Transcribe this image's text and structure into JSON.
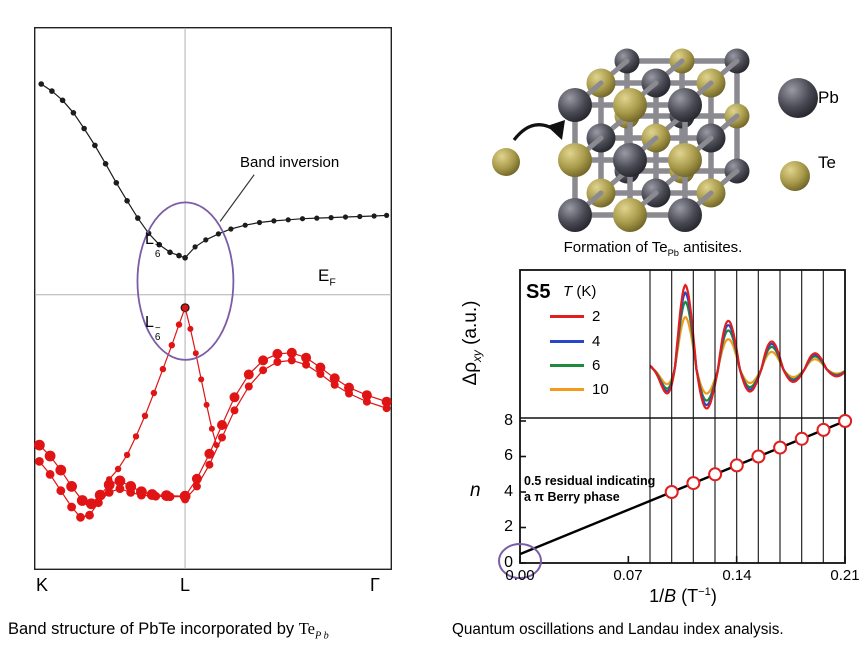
{
  "band_panel": {
    "annotation_label": "Band inversion",
    "ef": {
      "base": "E",
      "sub": "F"
    },
    "l6_plus": {
      "base": "L",
      "sub": "6",
      "sup": "+"
    },
    "l6_minus": {
      "base": "L",
      "sub": "6",
      "sup": "−"
    },
    "x_ticks": [
      "K",
      "L",
      "Γ"
    ]
  },
  "crystal_panel": {
    "caption": {
      "pre": "Formation of Te",
      "sub": "Pb",
      "post": " antisites."
    },
    "legend": [
      {
        "label": "Pb"
      },
      {
        "label": "Te"
      }
    ],
    "colors": {
      "Pb": "#4a4a54",
      "Te": "#a89a4a"
    }
  },
  "oscillation_panel": {
    "sample": "S5",
    "legend_title_italic": "T",
    "legend_title_rest": " (K)",
    "legend_entries": [
      {
        "label": "2",
        "color": "#e01f1f"
      },
      {
        "label": "4",
        "color": "#2a46c8"
      },
      {
        "label": "6",
        "color": "#1f8a3a"
      },
      {
        "label": "10",
        "color": "#f59a1a"
      }
    ],
    "ylabel_top_parts": {
      "delta_rho": "Δρ",
      "sub": "xy",
      "rest": " (a.u.)"
    },
    "ylabel_bottom": "n",
    "y_ticks": [
      "0",
      "2",
      "4",
      "6",
      "8"
    ],
    "x_ticks": [
      "0.00",
      "0.07",
      "0.14",
      "0.21"
    ],
    "xlabel_parts": {
      "pre": "1/",
      "italic": "B",
      "post": " (T",
      "sup": "−1",
      "end": ")"
    },
    "annotation_line1": "0.5 residual indicating",
    "annotation_line2": "a π Berry phase"
  },
  "captions": {
    "left_main": "Band structure of PbTe incorporated by ",
    "left_te": "Te",
    "left_te_sub": "P b",
    "right": "Quantum oscillations and Landau index analysis."
  },
  "chart_data": [
    {
      "type": "scatter",
      "title": "Band structure of PbTe incorporated by TePb",
      "x_ticks": [
        "K",
        "L",
        "Γ"
      ],
      "l_frac": 0.422,
      "ef_frac": 0.493,
      "coordinates_note": "points are [x,y] panel fractions; x: 0=K, 0.422=L, 1=Γ; y: 0=top, 1=bottom; Fermi level at y=0.493",
      "series": [
        {
          "name": "conduction-band-left",
          "color": "#1c1c1c",
          "r": 2.8,
          "points": [
            [
              0.02,
              0.105
            ],
            [
              0.05,
              0.118
            ],
            [
              0.08,
              0.135
            ],
            [
              0.11,
              0.158
            ],
            [
              0.14,
              0.187
            ],
            [
              0.17,
              0.218
            ],
            [
              0.2,
              0.252
            ],
            [
              0.23,
              0.287
            ],
            [
              0.26,
              0.32
            ],
            [
              0.29,
              0.352
            ],
            [
              0.32,
              0.38
            ],
            [
              0.35,
              0.401
            ],
            [
              0.38,
              0.415
            ],
            [
              0.405,
              0.421
            ],
            [
              0.422,
              0.425
            ]
          ]
        },
        {
          "name": "conduction-band-right",
          "color": "#1c1c1c",
          "r": 2.6,
          "points": [
            [
              0.422,
              0.425
            ],
            [
              0.45,
              0.405
            ],
            [
              0.48,
              0.392
            ],
            [
              0.515,
              0.381
            ],
            [
              0.55,
              0.372
            ],
            [
              0.59,
              0.365
            ],
            [
              0.63,
              0.36
            ],
            [
              0.67,
              0.357
            ],
            [
              0.71,
              0.355
            ],
            [
              0.75,
              0.353
            ],
            [
              0.79,
              0.352
            ],
            [
              0.83,
              0.351
            ],
            [
              0.87,
              0.35
            ],
            [
              0.91,
              0.349
            ],
            [
              0.95,
              0.348
            ],
            [
              0.985,
              0.347
            ]
          ]
        },
        {
          "name": "l6-minus-point",
          "color": "#1c1c1c",
          "r": 4.5,
          "points": [
            [
              0.422,
              0.517
            ]
          ]
        },
        {
          "name": "valence-from-l6-left",
          "color": "#e01414",
          "r": 3.2,
          "points": [
            [
              0.422,
              0.517
            ],
            [
              0.405,
              0.548
            ],
            [
              0.385,
              0.586
            ],
            [
              0.36,
              0.63
            ],
            [
              0.335,
              0.674
            ],
            [
              0.31,
              0.716
            ],
            [
              0.285,
              0.754
            ],
            [
              0.26,
              0.788
            ],
            [
              0.235,
              0.814
            ],
            [
              0.21,
              0.833
            ]
          ]
        },
        {
          "name": "valence-from-l6-right",
          "color": "#e01414",
          "r": 3.0,
          "points": [
            [
              0.422,
              0.517
            ],
            [
              0.437,
              0.556
            ],
            [
              0.452,
              0.601
            ],
            [
              0.467,
              0.649
            ],
            [
              0.482,
              0.696
            ],
            [
              0.497,
              0.74
            ],
            [
              0.51,
              0.77
            ]
          ]
        },
        {
          "name": "valence-left-upper",
          "color": "#e01414",
          "r": 5.4,
          "points": [
            [
              0.015,
              0.77
            ],
            [
              0.045,
              0.79
            ],
            [
              0.075,
              0.816
            ],
            [
              0.105,
              0.846
            ],
            [
              0.135,
              0.872
            ],
            [
              0.16,
              0.878
            ],
            [
              0.185,
              0.862
            ],
            [
              0.21,
              0.843
            ],
            [
              0.24,
              0.836
            ],
            [
              0.27,
              0.846
            ],
            [
              0.3,
              0.856
            ],
            [
              0.33,
              0.861
            ],
            [
              0.37,
              0.863
            ],
            [
              0.422,
              0.864
            ]
          ]
        },
        {
          "name": "valence-left-lower",
          "color": "#e01414",
          "r": 4.4,
          "points": [
            [
              0.015,
              0.8
            ],
            [
              0.045,
              0.824
            ],
            [
              0.075,
              0.854
            ],
            [
              0.105,
              0.884
            ],
            [
              0.13,
              0.903
            ],
            [
              0.155,
              0.899
            ],
            [
              0.18,
              0.876
            ],
            [
              0.21,
              0.857
            ],
            [
              0.24,
              0.85
            ],
            [
              0.27,
              0.857
            ],
            [
              0.3,
              0.862
            ],
            [
              0.34,
              0.864
            ],
            [
              0.38,
              0.865
            ],
            [
              0.422,
              0.865
            ]
          ]
        },
        {
          "name": "valence-right-upper",
          "color": "#e01414",
          "r": 5.0,
          "points": [
            [
              0.422,
              0.864
            ],
            [
              0.455,
              0.832
            ],
            [
              0.49,
              0.786
            ],
            [
              0.525,
              0.733
            ],
            [
              0.56,
              0.682
            ],
            [
              0.6,
              0.64
            ],
            [
              0.64,
              0.614
            ],
            [
              0.68,
              0.602
            ],
            [
              0.72,
              0.6
            ],
            [
              0.76,
              0.609
            ],
            [
              0.8,
              0.627
            ],
            [
              0.84,
              0.647
            ],
            [
              0.88,
              0.664
            ],
            [
              0.93,
              0.678
            ],
            [
              0.985,
              0.69
            ]
          ]
        },
        {
          "name": "valence-right-lower",
          "color": "#e01414",
          "r": 4.0,
          "points": [
            [
              0.422,
              0.87
            ],
            [
              0.455,
              0.846
            ],
            [
              0.49,
              0.806
            ],
            [
              0.525,
              0.756
            ],
            [
              0.56,
              0.706
            ],
            [
              0.6,
              0.662
            ],
            [
              0.64,
              0.632
            ],
            [
              0.68,
              0.617
            ],
            [
              0.72,
              0.614
            ],
            [
              0.76,
              0.622
            ],
            [
              0.8,
              0.639
            ],
            [
              0.84,
              0.659
            ],
            [
              0.88,
              0.675
            ],
            [
              0.93,
              0.69
            ],
            [
              0.985,
              0.702
            ]
          ]
        }
      ],
      "annotations": {
        "label": "Band inversion",
        "ellipse": {
          "cx": 0.423,
          "cy": 0.468,
          "rx": 0.134,
          "ry": 0.145
        },
        "pointer": [
          0.615,
          0.272,
          0.52,
          0.358
        ],
        "color": "#7b5ca6"
      }
    },
    {
      "type": "line",
      "title": "Quantum oscillations and Landau index analysis",
      "x": {
        "label": "1/B (T⁻¹)",
        "range": [
          0,
          0.21
        ],
        "ticks": [
          0,
          0.07,
          0.14,
          0.21
        ]
      },
      "gridlines_invB": [
        0.084,
        0.098,
        0.112,
        0.126,
        0.14,
        0.154,
        0.168,
        0.182,
        0.196,
        0.21
      ],
      "oscillation": {
        "ylabel": "Δρxy (a.u.)",
        "frequency_T": 35.7,
        "peak_invB": 0.107,
        "x_start": 0.084,
        "x_end": 0.2102,
        "series": [
          {
            "name": "2",
            "color": "#e01f1f",
            "amplitude": 1
          },
          {
            "name": "4",
            "color": "#2a46c8",
            "amplitude": 0.91
          },
          {
            "name": "6",
            "color": "#1f8a3a",
            "amplitude": 0.8
          },
          {
            "name": "10",
            "color": "#f59a1a",
            "amplitude": 0.62
          }
        ]
      },
      "landau": {
        "ylabel": "n",
        "ylim": [
          0,
          8
        ],
        "yticks": [
          0,
          2,
          4,
          6,
          8
        ],
        "intercept": 0.5,
        "slope_T": 35.7,
        "points_n": [
          4,
          4.5,
          5,
          5.5,
          6,
          6.5,
          7,
          7.5,
          8
        ],
        "annotation": "0.5 residual indicating a π Berry phase"
      }
    }
  ]
}
